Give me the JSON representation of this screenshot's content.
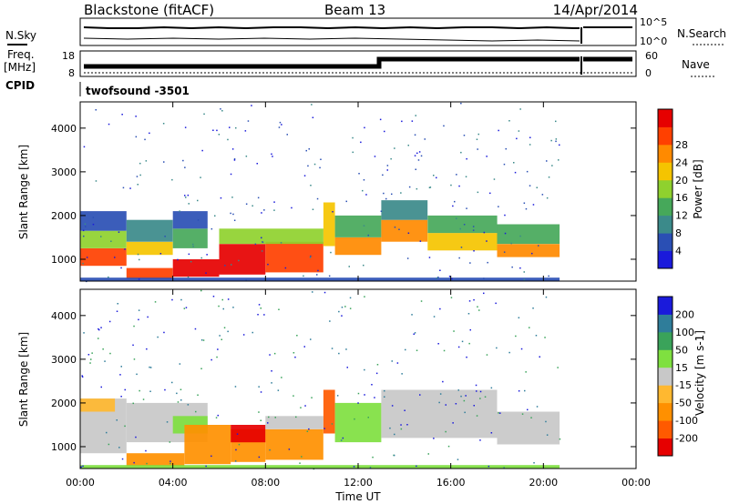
{
  "header": {
    "radar": "Blackstone (fitACF)",
    "beam": "Beam 13",
    "date": "14/Apr/2014"
  },
  "sky_panel": {
    "left_label": "N.Sky",
    "right_label": "N.Search",
    "tick_top": "10^5",
    "tick_bottom": "10^0"
  },
  "freq_panel": {
    "left_label_1": "Freq.",
    "left_label_2": "[MHz]",
    "right_label": "Nave",
    "left_ticks": [
      "18",
      "8"
    ],
    "right_ticks": [
      "60",
      "0"
    ],
    "cpid_label": "CPID",
    "cpid_value": "twofsound -3501"
  },
  "colors": {
    "power_scale": [
      "#1a1adb",
      "#2a4fb4",
      "#3b8a8a",
      "#46a85a",
      "#8fd12e",
      "#f5c400",
      "#ff8a00",
      "#ff4000",
      "#e60000"
    ],
    "velocity_scale": [
      "#1a1adb",
      "#2f7d9a",
      "#3aa35a",
      "#7fe040",
      "#c8c8c8",
      "#ffb830",
      "#ff9000",
      "#ff5a00",
      "#e60000"
    ],
    "frame": "#000000"
  },
  "chart_data": [
    {
      "type": "heatmap",
      "name": "power",
      "ylabel": "Slant Range [km]",
      "xlabel": "",
      "x_ticks": [
        "00:00",
        "04:00",
        "08:00",
        "12:00",
        "16:00",
        "20:00",
        "00:00"
      ],
      "xlim_hours": [
        0,
        24
      ],
      "y_ticks": [
        1000,
        2000,
        3000,
        4000
      ],
      "ylim_km": [
        500,
        4600
      ],
      "colorbar_label": "Power [dB]",
      "colorbar_ticks": [
        "4",
        "8",
        "12",
        "16",
        "20",
        "24",
        "28"
      ],
      "bands": [
        {
          "t0": 0.0,
          "t1": 2.0,
          "r0": 850,
          "r1": 1250,
          "level": 7
        },
        {
          "t0": 0.0,
          "t1": 2.0,
          "r0": 1250,
          "r1": 1650,
          "level": 4
        },
        {
          "t0": 0.0,
          "t1": 2.0,
          "r0": 1650,
          "r1": 2100,
          "level": 1
        },
        {
          "t0": 2.0,
          "t1": 4.0,
          "r0": 1100,
          "r1": 1400,
          "level": 5
        },
        {
          "t0": 2.0,
          "t1": 4.0,
          "r0": 1400,
          "r1": 1900,
          "level": 2
        },
        {
          "t0": 4.0,
          "t1": 5.5,
          "r0": 1250,
          "r1": 1700,
          "level": 3
        },
        {
          "t0": 4.0,
          "t1": 5.5,
          "r0": 1700,
          "r1": 2100,
          "level": 1
        },
        {
          "t0": 2.0,
          "t1": 4.0,
          "r0": 550,
          "r1": 800,
          "level": 7
        },
        {
          "t0": 4.0,
          "t1": 6.0,
          "r0": 600,
          "r1": 1000,
          "level": 8
        },
        {
          "t0": 6.0,
          "t1": 8.0,
          "r0": 650,
          "r1": 1350,
          "level": 8
        },
        {
          "t0": 8.0,
          "t1": 10.5,
          "r0": 700,
          "r1": 1400,
          "level": 7
        },
        {
          "t0": 6.0,
          "t1": 10.5,
          "r0": 1350,
          "r1": 1700,
          "level": 4
        },
        {
          "t0": 10.5,
          "t1": 11.0,
          "r0": 1300,
          "r1": 2300,
          "level": 5
        },
        {
          "t0": 11.0,
          "t1": 13.0,
          "r0": 1100,
          "r1": 1500,
          "level": 6
        },
        {
          "t0": 11.0,
          "t1": 13.0,
          "r0": 1500,
          "r1": 2000,
          "level": 3
        },
        {
          "t0": 13.0,
          "t1": 15.0,
          "r0": 1400,
          "r1": 1900,
          "level": 6
        },
        {
          "t0": 13.0,
          "t1": 15.0,
          "r0": 1900,
          "r1": 2350,
          "level": 2
        },
        {
          "t0": 15.0,
          "t1": 18.0,
          "r0": 1200,
          "r1": 1600,
          "level": 5
        },
        {
          "t0": 15.0,
          "t1": 18.0,
          "r0": 1600,
          "r1": 2000,
          "level": 3
        },
        {
          "t0": 18.0,
          "t1": 20.7,
          "r0": 1050,
          "r1": 1350,
          "level": 6
        },
        {
          "t0": 18.0,
          "t1": 20.7,
          "r0": 1350,
          "r1": 1800,
          "level": 3
        },
        {
          "t0": 0.0,
          "t1": 20.7,
          "r0": 500,
          "r1": 580,
          "level": 1
        }
      ]
    },
    {
      "type": "heatmap",
      "name": "velocity",
      "ylabel": "Slant Range [km]",
      "xlabel": "Time UT",
      "x_ticks": [
        "00:00",
        "04:00",
        "08:00",
        "12:00",
        "16:00",
        "20:00",
        "00:00"
      ],
      "xlim_hours": [
        0,
        24
      ],
      "y_ticks": [
        1000,
        2000,
        3000,
        4000
      ],
      "ylim_km": [
        500,
        4600
      ],
      "colorbar_label": "Velocity [m s-1]",
      "colorbar_ticks": [
        "200",
        "100",
        "50",
        "15",
        "-15",
        "-50",
        "-100",
        "-200"
      ],
      "bands": [
        {
          "t0": 0.0,
          "t1": 2.0,
          "r0": 850,
          "r1": 2100,
          "level": 4
        },
        {
          "t0": 0.0,
          "t1": 1.5,
          "r0": 1800,
          "r1": 2100,
          "level": 5
        },
        {
          "t0": 2.0,
          "t1": 5.5,
          "r0": 1100,
          "r1": 2000,
          "level": 4
        },
        {
          "t0": 4.0,
          "t1": 5.5,
          "r0": 1300,
          "r1": 1700,
          "level": 3
        },
        {
          "t0": 2.0,
          "t1": 4.5,
          "r0": 550,
          "r1": 850,
          "level": 6
        },
        {
          "t0": 4.5,
          "t1": 6.5,
          "r0": 600,
          "r1": 1500,
          "level": 6
        },
        {
          "t0": 6.5,
          "t1": 8.0,
          "r0": 650,
          "r1": 1400,
          "level": 6
        },
        {
          "t0": 6.5,
          "t1": 8.0,
          "r0": 1100,
          "r1": 1500,
          "level": 8
        },
        {
          "t0": 8.0,
          "t1": 10.5,
          "r0": 700,
          "r1": 1400,
          "level": 6
        },
        {
          "t0": 8.0,
          "t1": 10.5,
          "r0": 1400,
          "r1": 1700,
          "level": 4
        },
        {
          "t0": 10.5,
          "t1": 11.0,
          "r0": 1300,
          "r1": 2300,
          "level": 7
        },
        {
          "t0": 11.0,
          "t1": 13.0,
          "r0": 1100,
          "r1": 2000,
          "level": 3
        },
        {
          "t0": 13.0,
          "t1": 18.0,
          "r0": 1200,
          "r1": 2300,
          "level": 4
        },
        {
          "t0": 18.0,
          "t1": 20.7,
          "r0": 1050,
          "r1": 1800,
          "level": 4
        },
        {
          "t0": 0.0,
          "t1": 20.7,
          "r0": 500,
          "r1": 580,
          "level": 3
        }
      ]
    }
  ]
}
